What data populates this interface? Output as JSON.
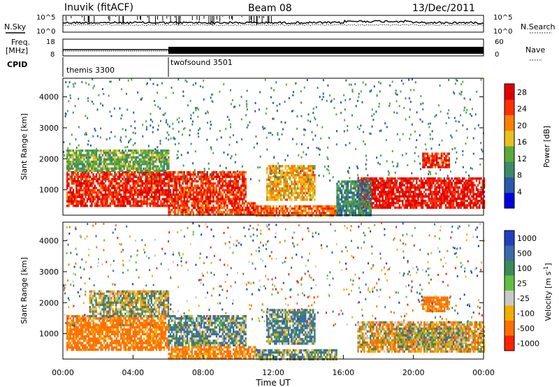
{
  "header": {
    "station": "Inuvik (fitACF)",
    "beam": "Beam 08",
    "date": "13/Dec/2011"
  },
  "top_panels": {
    "nsky_label": "N.Sky",
    "nsearch_label": "N.Search",
    "noise_ticks": [
      "10^5",
      "10^0"
    ],
    "freq_label_1": "Freq.",
    "freq_label_2": "[MHz]",
    "freq_ticks": [
      "18",
      "8"
    ],
    "nave_label": "Nave",
    "nave_ticks": [
      "60",
      "0"
    ],
    "cpid_label": "CPID",
    "programs": [
      {
        "name": "themis 3300",
        "start_hour": 0
      },
      {
        "name": "twofsound 3501",
        "start_hour": 6
      }
    ]
  },
  "chart_data": [
    {
      "type": "heatmap",
      "name": "power",
      "ylabel": "Slant Range [km]",
      "yticks": [
        1000,
        2000,
        3000,
        4000
      ],
      "ylim": [
        180,
        4600
      ],
      "xlim": [
        0,
        24
      ],
      "colorbar_label": "Power [dB]",
      "colorbar_ticks": [
        4,
        8,
        12,
        16,
        20,
        24,
        28
      ],
      "colorbar_range": [
        0,
        30
      ],
      "colors": [
        "#0000e0",
        "#2a5aa8",
        "#3c8a6a",
        "#5aaa3a",
        "#e8c020",
        "#ff8000",
        "#ff3000",
        "#e00000"
      ],
      "regions": [
        {
          "x0": 0.2,
          "x1": 6.0,
          "y0": 500,
          "y1": 1600,
          "level": 26
        },
        {
          "x0": 0.2,
          "x1": 6.0,
          "y0": 1600,
          "y1": 2300,
          "level": 12
        },
        {
          "x0": 6.0,
          "x1": 10.4,
          "y0": 600,
          "y1": 1600,
          "level": 25
        },
        {
          "x0": 6.0,
          "x1": 11.0,
          "y0": 200,
          "y1": 600,
          "level": 24
        },
        {
          "x0": 11.0,
          "x1": 15.6,
          "y0": 200,
          "y1": 500,
          "level": 22
        },
        {
          "x0": 11.6,
          "x1": 14.4,
          "y0": 700,
          "y1": 1800,
          "level": 18
        },
        {
          "x0": 16.8,
          "x1": 24.0,
          "y0": 400,
          "y1": 1400,
          "level": 27
        },
        {
          "x0": 20.5,
          "x1": 22.0,
          "y0": 1700,
          "y1": 2200,
          "level": 25
        },
        {
          "x0": 15.6,
          "x1": 17.6,
          "y0": 200,
          "y1": 1300,
          "level": 8
        }
      ]
    },
    {
      "type": "heatmap",
      "name": "velocity",
      "ylabel": "Slant Range [km]",
      "yticks": [
        1000,
        2000,
        3000,
        4000
      ],
      "ylim": [
        180,
        4600
      ],
      "xlim": [
        0,
        24
      ],
      "xticks": [
        "00:00",
        "04:00",
        "08:00",
        "12:00",
        "16:00",
        "20:00",
        "00:00"
      ],
      "xlabel": "Time UT",
      "colorbar_label_1": "Velocity",
      "colorbar_label_2": "[m s",
      "colorbar_label_3": "-1",
      "colorbar_label_4": "]",
      "colorbar_ticks": [
        "1000",
        "500",
        "100",
        "25",
        "-25",
        "-100",
        "-500",
        "-1000"
      ],
      "colors": [
        "#2040c0",
        "#3a6aa8",
        "#3a8a5a",
        "#60c040",
        "#c8c8c8",
        "#f0b000",
        "#ff7000",
        "#ff2000"
      ],
      "regions": [
        {
          "x0": 0.2,
          "x1": 6.0,
          "y0": 500,
          "y1": 1600,
          "level": -200
        },
        {
          "x0": 1.5,
          "x1": 6.0,
          "y0": 1600,
          "y1": 2400,
          "level": 0
        },
        {
          "x0": 6.0,
          "x1": 10.4,
          "y0": 600,
          "y1": 1600,
          "level": 80
        },
        {
          "x0": 6.0,
          "x1": 11.0,
          "y0": 200,
          "y1": 600,
          "level": -150
        },
        {
          "x0": 11.6,
          "x1": 14.4,
          "y0": 700,
          "y1": 1800,
          "level": 80
        },
        {
          "x0": 11.0,
          "x1": 15.6,
          "y0": 200,
          "y1": 500,
          "level": 40
        },
        {
          "x0": 16.8,
          "x1": 24.0,
          "y0": 400,
          "y1": 1400,
          "level": -80
        },
        {
          "x0": 19.0,
          "x1": 23.0,
          "y0": 600,
          "y1": 1200,
          "level": 0
        },
        {
          "x0": 20.5,
          "x1": 22.0,
          "y0": 1700,
          "y1": 2200,
          "level": -200
        }
      ]
    }
  ]
}
